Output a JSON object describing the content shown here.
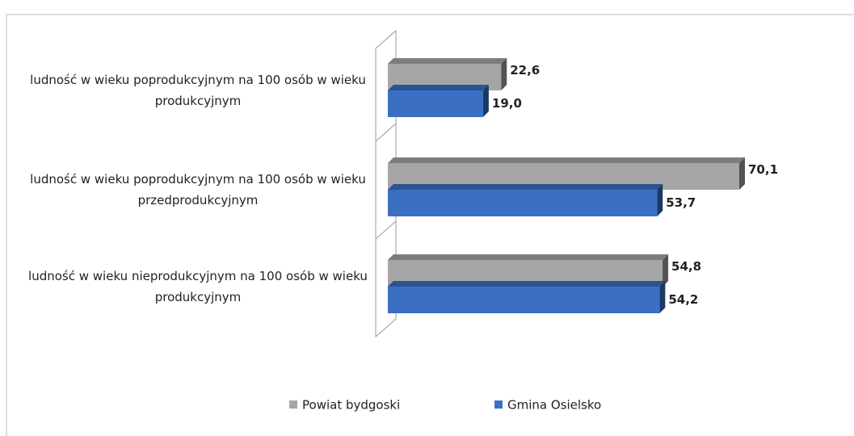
{
  "chart_data": {
    "type": "bar",
    "orientation": "horizontal",
    "categories": [
      "ludność w wieku poprodukcyjnym  na 100 osób w wieku produkcyjnym",
      "ludność w wieku poprodukcyjnym  na 100 osób w wieku przedprodukcyjnym",
      "ludność w wieku nieprodukcyjnym  na 100 osób w wieku produkcyjnym"
    ],
    "series": [
      {
        "name": "Powiat bydgoski",
        "color": "#a6a6a6",
        "values": [
          22.6,
          70.1,
          54.8
        ],
        "value_labels": [
          "22,6",
          "70,1",
          "54,8"
        ]
      },
      {
        "name": "Gmina Osielsko",
        "color": "#3a6fc4",
        "values": [
          19.0,
          53.7,
          54.2
        ],
        "value_labels": [
          "19,0",
          "53,7",
          "54,2"
        ]
      }
    ],
    "legend": "bottom"
  }
}
